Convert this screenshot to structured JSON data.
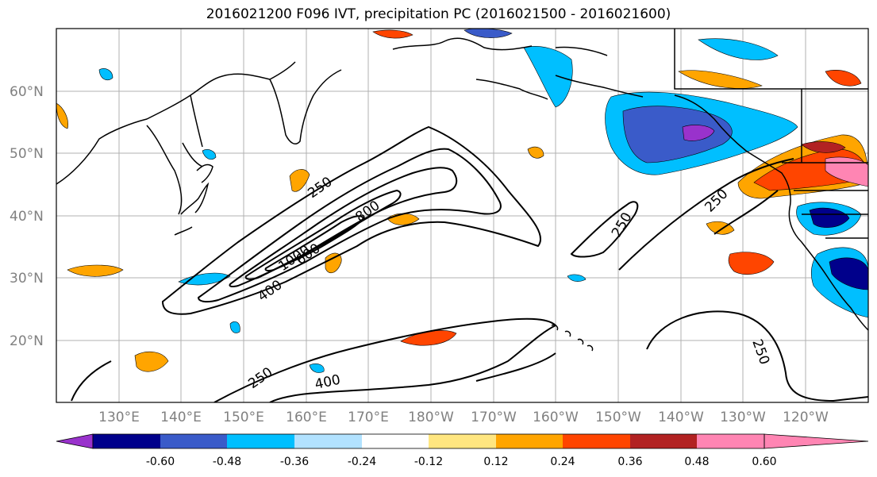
{
  "title": "2016021200 F096 IVT, precipitation PC (2016021500 - 2016021600)",
  "map": {
    "lat_labels": [
      "60°N",
      "50°N",
      "40°N",
      "30°N",
      "20°N"
    ],
    "lon_labels": [
      "130°E",
      "140°E",
      "150°E",
      "160°E",
      "170°E",
      "180°W",
      "170°W",
      "160°W",
      "150°W",
      "140°W",
      "130°W",
      "120°W"
    ],
    "contour_labels": [
      "250",
      "800",
      "1000",
      "600",
      "400",
      "250",
      "250",
      "250",
      "400",
      "250"
    ]
  },
  "colorbar": {
    "colors": [
      "#9932cc",
      "#00008b",
      "#3a5bc9",
      "#00bfff",
      "#b2e2ff",
      "#ffffff",
      "#ffe680",
      "#ffa500",
      "#ff4500",
      "#b22222",
      "#ff85b3"
    ],
    "tick_labels": [
      "-0.60",
      "-0.48",
      "-0.36",
      "-0.24",
      "-0.12",
      "0.12",
      "0.24",
      "0.36",
      "0.48",
      "0.60"
    ]
  }
}
